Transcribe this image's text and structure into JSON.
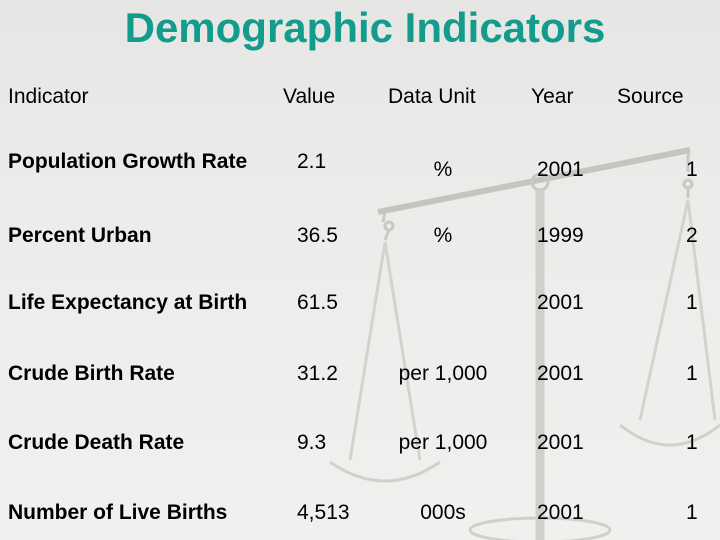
{
  "title": "Demographic Indicators",
  "headers": {
    "indicator": "Indicator",
    "value": "Value",
    "unit": "Data Unit",
    "year": "Year",
    "source": "Source"
  },
  "rows": [
    {
      "indicator": "Population Growth Rate",
      "value": "2.1",
      "unit": "%",
      "year": "2001",
      "source": "1"
    },
    {
      "indicator": "Percent Urban",
      "value": "36.5",
      "unit": "%",
      "year": "1999",
      "source": "2"
    },
    {
      "indicator": "Life Expectancy at Birth",
      "value": "61.5",
      "unit": "",
      "year": "2001",
      "source": "1"
    },
    {
      "indicator": "Crude Birth Rate",
      "value": "31.2",
      "unit": "per 1,000",
      "year": "2001",
      "source": "1"
    },
    {
      "indicator": "Crude Death Rate",
      "value": "9.3",
      "unit": "per 1,000",
      "year": "2001",
      "source": "1"
    },
    {
      "indicator": "Number of Live Births",
      "value": "4,513",
      "unit": "000s",
      "year": "2001",
      "source": "1"
    }
  ],
  "colors": {
    "title": "#139b8b",
    "background": "#ececea",
    "scale": "#c9c9c6"
  }
}
